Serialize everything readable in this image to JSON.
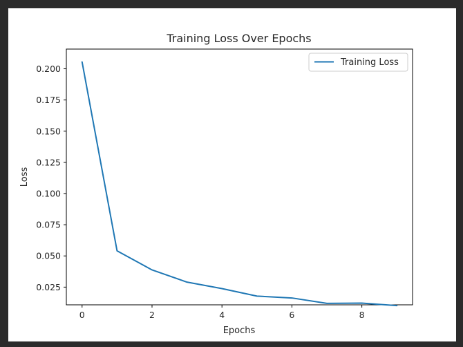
{
  "chart_data": {
    "type": "line",
    "title": "Training Loss Over Epochs",
    "xlabel": "Epochs",
    "ylabel": "Loss",
    "xlim": [
      -0.45,
      9.45
    ],
    "ylim": [
      0.0108,
      0.2158
    ],
    "xticks": [
      0,
      2,
      4,
      6,
      8
    ],
    "xtick_labels": [
      "0",
      "2",
      "4",
      "6",
      "8"
    ],
    "yticks": [
      0.025,
      0.05,
      0.075,
      0.1,
      0.125,
      0.15,
      0.175,
      0.2
    ],
    "ytick_labels": [
      "0.025",
      "0.050",
      "0.075",
      "0.100",
      "0.125",
      "0.150",
      "0.175",
      "0.200"
    ],
    "grid": false,
    "legend_position": "top-right",
    "series": [
      {
        "name": "Training Loss",
        "color": "#1f77b4",
        "x": [
          0,
          1,
          2,
          3,
          4,
          5,
          6,
          7,
          8,
          9
        ],
        "y": [
          0.2055,
          0.0541,
          0.0388,
          0.029,
          0.0238,
          0.0178,
          0.0163,
          0.012,
          0.0122,
          0.0102
        ]
      }
    ]
  }
}
